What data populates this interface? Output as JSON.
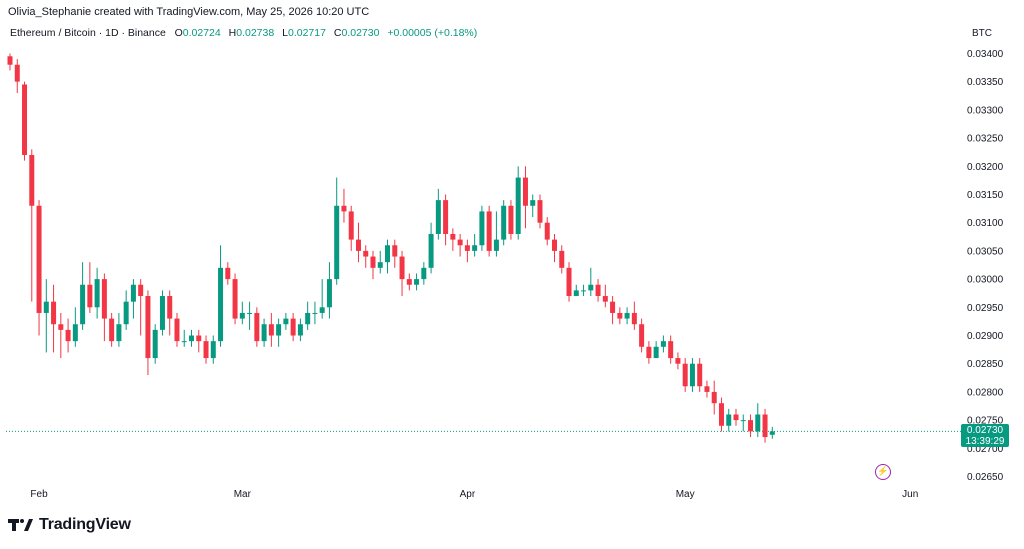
{
  "header": {
    "text": "Olivia_Stephanie created with TradingView.com, May 25, 2026 10:20 UTC"
  },
  "legend": {
    "symbol": "Ethereum / Bitcoin · 1D · Binance",
    "open_label": "O",
    "open": "0.02724",
    "high_label": "H",
    "high": "0.02738",
    "low_label": "L",
    "low": "0.02717",
    "close_label": "C",
    "close": "0.02730",
    "change": "+0.00005 (+0.18%)"
  },
  "currency": "BTC",
  "price_tag": {
    "price": "0.02730",
    "countdown": "13:39:29"
  },
  "logo": {
    "text": "TradingView"
  },
  "colors": {
    "up": "#089981",
    "down": "#f23645",
    "grid": "#ffffff",
    "last_price_line": "#089981"
  },
  "chart_data": {
    "type": "candlestick",
    "y_ticks": [
      "0.03400",
      "0.03350",
      "0.03300",
      "0.03250",
      "0.03200",
      "0.03150",
      "0.03100",
      "0.03050",
      "0.03000",
      "0.02950",
      "0.02900",
      "0.02850",
      "0.02800",
      "0.02750",
      "0.02700",
      "0.02650"
    ],
    "ylim": [
      0.02635,
      0.03415
    ],
    "x_ticks": [
      {
        "label": "Feb",
        "index": 4
      },
      {
        "label": "Mar",
        "index": 32
      },
      {
        "label": "Apr",
        "index": 63
      },
      {
        "label": "May",
        "index": 93
      },
      {
        "label": "Jun",
        "index": 124
      }
    ],
    "last_price": 0.0273,
    "candles": [
      [
        0.03395,
        0.0338,
        0.034,
        0.0337
      ],
      [
        0.0338,
        0.0335,
        0.0339,
        0.0333
      ],
      [
        0.03345,
        0.0322,
        0.0335,
        0.0321
      ],
      [
        0.0322,
        0.0313,
        0.0323,
        0.0296
      ],
      [
        0.0313,
        0.0294,
        0.0314,
        0.029
      ],
      [
        0.0294,
        0.0296,
        0.03,
        0.0287
      ],
      [
        0.0296,
        0.0292,
        0.0299,
        0.0287
      ],
      [
        0.0292,
        0.0291,
        0.0294,
        0.0286
      ],
      [
        0.0291,
        0.0289,
        0.0293,
        0.0287
      ],
      [
        0.0289,
        0.0292,
        0.0295,
        0.0288
      ],
      [
        0.0292,
        0.0299,
        0.0303,
        0.0291
      ],
      [
        0.0299,
        0.0295,
        0.0303,
        0.0294
      ],
      [
        0.0295,
        0.03,
        0.0302,
        0.0293
      ],
      [
        0.03,
        0.0293,
        0.0301,
        0.0289
      ],
      [
        0.0293,
        0.0289,
        0.0294,
        0.0288
      ],
      [
        0.0289,
        0.0292,
        0.0294,
        0.0288
      ],
      [
        0.0292,
        0.0296,
        0.0298,
        0.0291
      ],
      [
        0.0296,
        0.0299,
        0.03,
        0.0293
      ],
      [
        0.0299,
        0.0297,
        0.03,
        0.029
      ],
      [
        0.0297,
        0.0286,
        0.0298,
        0.0283
      ],
      [
        0.0286,
        0.0291,
        0.0292,
        0.0285
      ],
      [
        0.0291,
        0.0297,
        0.0298,
        0.029
      ],
      [
        0.0297,
        0.0293,
        0.0298,
        0.029
      ],
      [
        0.0293,
        0.0289,
        0.0294,
        0.0288
      ],
      [
        0.0289,
        0.0289,
        0.0291,
        0.0288
      ],
      [
        0.0289,
        0.029,
        0.0291,
        0.0288
      ],
      [
        0.029,
        0.0289,
        0.0291,
        0.0287
      ],
      [
        0.0289,
        0.0286,
        0.029,
        0.0285
      ],
      [
        0.0286,
        0.0289,
        0.029,
        0.0285
      ],
      [
        0.0289,
        0.0302,
        0.0306,
        0.0288
      ],
      [
        0.0302,
        0.03,
        0.0303,
        0.0299
      ],
      [
        0.03,
        0.0293,
        0.0301,
        0.0292
      ],
      [
        0.0293,
        0.0294,
        0.0296,
        0.0292
      ],
      [
        0.0294,
        0.0294,
        0.0296,
        0.0291
      ],
      [
        0.0294,
        0.0289,
        0.0295,
        0.0288
      ],
      [
        0.0289,
        0.0292,
        0.0293,
        0.0288
      ],
      [
        0.0292,
        0.029,
        0.0294,
        0.0288
      ],
      [
        0.029,
        0.0292,
        0.0293,
        0.0288
      ],
      [
        0.0292,
        0.0293,
        0.0294,
        0.0291
      ],
      [
        0.0293,
        0.029,
        0.0294,
        0.0289
      ],
      [
        0.029,
        0.0292,
        0.0293,
        0.0289
      ],
      [
        0.0292,
        0.0294,
        0.0296,
        0.0291
      ],
      [
        0.0294,
        0.0294,
        0.0296,
        0.0292
      ],
      [
        0.0294,
        0.0295,
        0.03,
        0.0293
      ],
      [
        0.0295,
        0.03,
        0.0303,
        0.0293
      ],
      [
        0.03,
        0.0313,
        0.0318,
        0.0299
      ],
      [
        0.0313,
        0.0312,
        0.0316,
        0.031
      ],
      [
        0.0312,
        0.0307,
        0.0313,
        0.0305
      ],
      [
        0.0307,
        0.0305,
        0.031,
        0.0303
      ],
      [
        0.0305,
        0.0304,
        0.0306,
        0.0302
      ],
      [
        0.0304,
        0.0302,
        0.0305,
        0.03
      ],
      [
        0.0302,
        0.0303,
        0.0305,
        0.0301
      ],
      [
        0.0303,
        0.0306,
        0.0307,
        0.0301
      ],
      [
        0.0306,
        0.0304,
        0.0307,
        0.0302
      ],
      [
        0.0304,
        0.03,
        0.0305,
        0.0297
      ],
      [
        0.03,
        0.0299,
        0.0301,
        0.0298
      ],
      [
        0.0299,
        0.03,
        0.0301,
        0.0298
      ],
      [
        0.03,
        0.0302,
        0.0303,
        0.0299
      ],
      [
        0.0302,
        0.0308,
        0.031,
        0.0301
      ],
      [
        0.0308,
        0.0314,
        0.0316,
        0.0307
      ],
      [
        0.0314,
        0.0308,
        0.0315,
        0.0306
      ],
      [
        0.0308,
        0.0307,
        0.0309,
        0.0305
      ],
      [
        0.0307,
        0.0306,
        0.0308,
        0.0304
      ],
      [
        0.0306,
        0.0305,
        0.0307,
        0.0303
      ],
      [
        0.0305,
        0.0306,
        0.0308,
        0.0304
      ],
      [
        0.0306,
        0.0312,
        0.0313,
        0.0305
      ],
      [
        0.0312,
        0.0305,
        0.0313,
        0.0304
      ],
      [
        0.0305,
        0.0307,
        0.0312,
        0.0304
      ],
      [
        0.0307,
        0.0313,
        0.0314,
        0.0306
      ],
      [
        0.0313,
        0.0308,
        0.0314,
        0.0307
      ],
      [
        0.0308,
        0.0318,
        0.032,
        0.0307
      ],
      [
        0.0318,
        0.0313,
        0.032,
        0.0309
      ],
      [
        0.0313,
        0.0314,
        0.0315,
        0.0311
      ],
      [
        0.0314,
        0.031,
        0.0315,
        0.0309
      ],
      [
        0.031,
        0.0307,
        0.0311,
        0.0306
      ],
      [
        0.0307,
        0.0305,
        0.0308,
        0.0303
      ],
      [
        0.0305,
        0.0302,
        0.0306,
        0.0301
      ],
      [
        0.0302,
        0.0297,
        0.0303,
        0.0296
      ],
      [
        0.0297,
        0.0298,
        0.0299,
        0.0297
      ],
      [
        0.0298,
        0.0298,
        0.0299,
        0.0297
      ],
      [
        0.0298,
        0.0299,
        0.0302,
        0.0297
      ],
      [
        0.0299,
        0.0297,
        0.03,
        0.0296
      ],
      [
        0.0297,
        0.0296,
        0.0299,
        0.0295
      ],
      [
        0.0296,
        0.0294,
        0.0297,
        0.0292
      ],
      [
        0.0294,
        0.0293,
        0.0295,
        0.0292
      ],
      [
        0.0293,
        0.0294,
        0.0295,
        0.0292
      ],
      [
        0.0294,
        0.0292,
        0.0296,
        0.0291
      ],
      [
        0.0292,
        0.0288,
        0.0293,
        0.0287
      ],
      [
        0.0288,
        0.0286,
        0.0289,
        0.0285
      ],
      [
        0.0286,
        0.0288,
        0.0289,
        0.0286
      ],
      [
        0.0288,
        0.0289,
        0.029,
        0.0287
      ],
      [
        0.0289,
        0.0286,
        0.029,
        0.0285
      ],
      [
        0.0286,
        0.0285,
        0.0287,
        0.0284
      ],
      [
        0.0285,
        0.0281,
        0.0286,
        0.028
      ],
      [
        0.0281,
        0.0285,
        0.0286,
        0.028
      ],
      [
        0.0285,
        0.0281,
        0.0286,
        0.028
      ],
      [
        0.0281,
        0.028,
        0.0282,
        0.0279
      ],
      [
        0.028,
        0.0278,
        0.0282,
        0.0276
      ],
      [
        0.0278,
        0.0274,
        0.0279,
        0.0273
      ],
      [
        0.0274,
        0.0276,
        0.0277,
        0.0273
      ],
      [
        0.0276,
        0.0275,
        0.0277,
        0.0274
      ],
      [
        0.0275,
        0.0275,
        0.0276,
        0.0273
      ],
      [
        0.0275,
        0.0273,
        0.0276,
        0.0272
      ],
      [
        0.0273,
        0.0276,
        0.0278,
        0.0272
      ],
      [
        0.0276,
        0.0272,
        0.0277,
        0.0271
      ],
      [
        0.02724,
        0.0273,
        0.02738,
        0.02717
      ]
    ]
  }
}
